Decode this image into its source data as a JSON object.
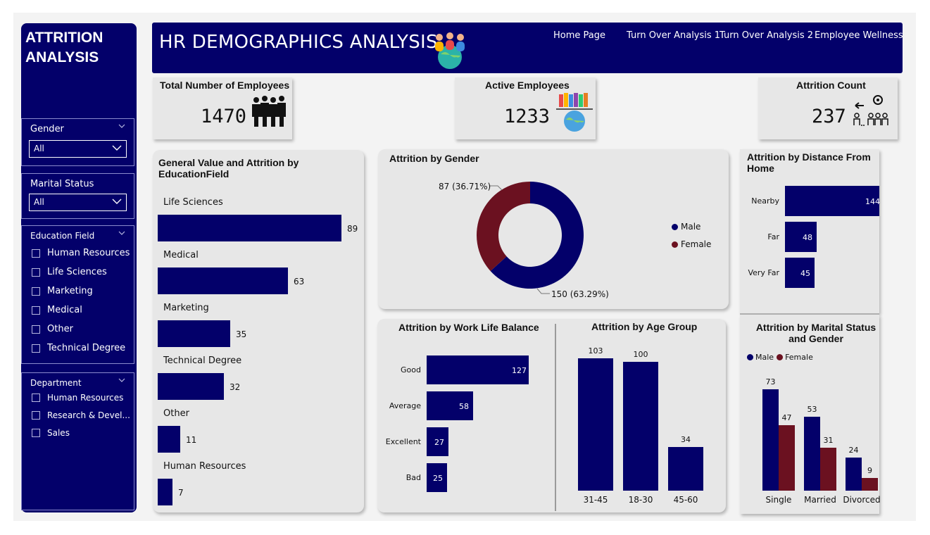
{
  "sidebar": {
    "title": "ATTRITION ANALYSIS",
    "gender": {
      "label": "Gender",
      "value": "All"
    },
    "marital": {
      "label": "Marital Status",
      "value": "All"
    },
    "education": {
      "label": "Education Field",
      "options": [
        "Human Resources",
        "Life Sciences",
        "Marketing",
        "Medical",
        "Other",
        "Technical Degree"
      ]
    },
    "department": {
      "label": "Department",
      "options": [
        "Human Resources",
        "Research & Devel...",
        "Sales"
      ]
    }
  },
  "header": {
    "title": "HR DEMOGRAPHICS ANALYSIS",
    "nav": [
      "Home Page",
      "Turn Over Analysis 1",
      "Turn Over Analysis 2",
      "Employee Wellness"
    ]
  },
  "kpis": {
    "total": {
      "label": "Total Number of Employees",
      "value": "1470"
    },
    "active": {
      "label": "Active Employees",
      "value": "1233"
    },
    "attrition": {
      "label": "Attrition Count",
      "value": "237"
    }
  },
  "colors": {
    "navy": "#03006a",
    "maroon": "#6b1120",
    "panel": "#e7e7e7"
  },
  "chart_data": [
    {
      "id": "education",
      "type": "bar",
      "orientation": "horizontal",
      "title": "General Value and Attrition by EducationField",
      "categories": [
        "Life Sciences",
        "Medical",
        "Marketing",
        "Technical Degree",
        "Other",
        "Human Resources"
      ],
      "values": [
        89,
        63,
        35,
        32,
        11,
        7
      ]
    },
    {
      "id": "gender",
      "type": "pie",
      "donut": true,
      "title": "Attrition by Gender",
      "slices": [
        {
          "name": "Male",
          "value": 150,
          "label": "150 (63.29%)",
          "color": "#03006a"
        },
        {
          "name": "Female",
          "value": 87,
          "label": "87 (36.71%)",
          "color": "#6b1120"
        }
      ],
      "legend": [
        "Male",
        "Female"
      ],
      "legend_position": "right"
    },
    {
      "id": "distance",
      "type": "bar",
      "orientation": "horizontal",
      "title": "Attrition by Distance From Home",
      "categories": [
        "Nearby",
        "Far",
        "Very Far"
      ],
      "values": [
        144,
        48,
        45
      ]
    },
    {
      "id": "worklife",
      "type": "bar",
      "orientation": "horizontal",
      "title": "Attrition by Work Life Balance",
      "categories": [
        "Good",
        "Average",
        "Excellent",
        "Bad"
      ],
      "values": [
        127,
        58,
        27,
        25
      ]
    },
    {
      "id": "age",
      "type": "bar",
      "orientation": "vertical",
      "title": "Attrition by Age Group",
      "categories": [
        "31-45",
        "18-30",
        "45-60"
      ],
      "values": [
        103,
        100,
        34
      ]
    },
    {
      "id": "marital",
      "type": "bar",
      "orientation": "vertical",
      "title": "Attrition by Marital Status and Gender",
      "categories": [
        "Single",
        "Married",
        "Divorced"
      ],
      "series": [
        {
          "name": "Male",
          "values": [
            73,
            53,
            24
          ],
          "color": "#03006a"
        },
        {
          "name": "Female",
          "values": [
            47,
            31,
            9
          ],
          "color": "#6b1120"
        }
      ],
      "legend_position": "top-left"
    }
  ]
}
